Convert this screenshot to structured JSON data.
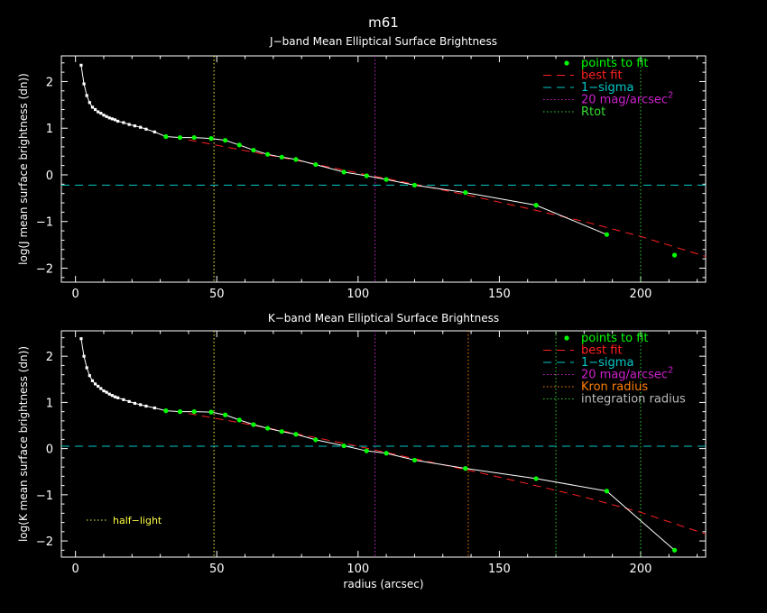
{
  "figure_title": "m61",
  "colors": {
    "background": "#000000",
    "axes": "#ffffff",
    "data": "#ffffff",
    "points": "#00ff00",
    "best_fit": "#ff2020",
    "sigma": "#00c8c8",
    "mag20": "#cc22cc",
    "rtot": "#33dd33",
    "kron": "#ff7f00",
    "integration": "#33cc33",
    "half_light": "#ffff44"
  },
  "chart_data": [
    {
      "type": "line",
      "title": "J−band Mean Elliptical Surface Brightness",
      "xlabel": "",
      "ylabel": "log(J mean surface brightness (dn))",
      "xlim": [
        -5,
        223
      ],
      "ylim": [
        -2.3,
        2.55
      ],
      "xticks": [
        "0",
        "50",
        "100",
        "150",
        "200"
      ],
      "yticks": [
        "2",
        "1",
        "0",
        "−1",
        "−2"
      ],
      "xtick_values": [
        0,
        50,
        100,
        150,
        200
      ],
      "ytick_values": [
        2,
        1,
        0,
        -1,
        -2
      ],
      "legend": [
        "points to fit",
        "best fit",
        "1−sigma",
        "20 mag/arcsec",
        "Rtot"
      ],
      "legend_mag_superscript": "2",
      "data_curve": {
        "x": [
          2,
          3,
          4,
          5,
          6,
          7,
          8,
          9,
          10,
          11,
          12,
          13,
          14,
          15,
          17,
          19,
          21,
          23,
          25,
          28,
          32,
          37,
          42,
          48,
          53,
          58,
          63,
          68,
          73,
          78,
          85,
          95,
          103,
          110,
          120,
          138,
          163,
          188
        ],
        "y": [
          2.35,
          1.95,
          1.7,
          1.55,
          1.45,
          1.4,
          1.35,
          1.32,
          1.28,
          1.25,
          1.22,
          1.2,
          1.18,
          1.15,
          1.12,
          1.08,
          1.05,
          1.02,
          0.98,
          0.92,
          0.82,
          0.8,
          0.8,
          0.78,
          0.74,
          0.64,
          0.53,
          0.44,
          0.38,
          0.33,
          0.22,
          0.06,
          -0.02,
          -0.1,
          -0.22,
          -0.38,
          -0.65,
          -1.28
        ]
      },
      "fit_points": {
        "x": [
          32,
          37,
          42,
          48,
          53,
          58,
          63,
          68,
          73,
          78,
          85,
          95,
          103,
          110,
          120,
          138,
          163,
          188,
          212
        ],
        "y": [
          0.82,
          0.8,
          0.8,
          0.78,
          0.74,
          0.64,
          0.53,
          0.44,
          0.38,
          0.33,
          0.22,
          0.06,
          -0.02,
          -0.1,
          -0.22,
          -0.38,
          -0.65,
          -1.28,
          -1.72
        ]
      },
      "best_fit": {
        "x": [
          40,
          60,
          80,
          100,
          120,
          140,
          160,
          180,
          200,
          223
        ],
        "y": [
          0.75,
          0.52,
          0.29,
          0.04,
          -0.2,
          -0.45,
          -0.72,
          -1.0,
          -1.32,
          -1.75
        ]
      },
      "sigma_level": -0.22,
      "mag20_x": 106,
      "rtot_x": 200,
      "yellow_x": 49
    },
    {
      "type": "line",
      "title": "K−band Mean Elliptical Surface Brightness",
      "xlabel": "radius (arcsec)",
      "ylabel": "log(K mean surface brightness (dn))",
      "xlim": [
        -5,
        223
      ],
      "ylim": [
        -2.35,
        2.55
      ],
      "xticks": [
        "0",
        "50",
        "100",
        "150",
        "200"
      ],
      "yticks": [
        "2",
        "1",
        "0",
        "−1",
        "−2"
      ],
      "xtick_values": [
        0,
        50,
        100,
        150,
        200
      ],
      "ytick_values": [
        2,
        1,
        0,
        -1,
        -2
      ],
      "legend": [
        "points to fit",
        "best fit",
        "1−sigma",
        "20 mag/arcsec",
        "Kron radius",
        "integration radius"
      ],
      "legend_mag_superscript": "2",
      "annotation": "half−light",
      "data_curve": {
        "x": [
          2,
          3,
          4,
          5,
          6,
          7,
          8,
          9,
          10,
          11,
          12,
          13,
          14,
          15,
          17,
          19,
          21,
          23,
          25,
          28,
          32,
          37,
          42,
          48,
          53,
          58,
          63,
          68,
          73,
          78,
          85,
          95,
          103,
          110,
          120,
          138,
          163,
          188
        ],
        "y": [
          2.38,
          2.0,
          1.75,
          1.58,
          1.47,
          1.4,
          1.35,
          1.3,
          1.25,
          1.22,
          1.18,
          1.15,
          1.12,
          1.1,
          1.06,
          1.02,
          0.98,
          0.95,
          0.92,
          0.88,
          0.82,
          0.8,
          0.8,
          0.79,
          0.73,
          0.62,
          0.52,
          0.44,
          0.37,
          0.31,
          0.19,
          0.06,
          -0.05,
          -0.1,
          -0.25,
          -0.43,
          -0.65,
          -0.92
        ]
      },
      "fit_points": {
        "x": [
          32,
          37,
          42,
          48,
          53,
          58,
          63,
          68,
          73,
          78,
          85,
          95,
          103,
          110,
          120,
          138,
          163,
          188,
          212
        ],
        "y": [
          0.82,
          0.8,
          0.8,
          0.79,
          0.73,
          0.62,
          0.52,
          0.44,
          0.37,
          0.31,
          0.19,
          0.06,
          -0.05,
          -0.1,
          -0.25,
          -0.43,
          -0.65,
          -0.92,
          -2.2
        ]
      },
      "data_tail": {
        "x": [
          188,
          212
        ],
        "y": [
          -0.92,
          -2.2
        ]
      },
      "best_fit": {
        "x": [
          40,
          60,
          80,
          100,
          120,
          140,
          160,
          180,
          200,
          223
        ],
        "y": [
          0.76,
          0.54,
          0.3,
          0.05,
          -0.22,
          -0.48,
          -0.76,
          -1.05,
          -1.38,
          -1.85
        ]
      },
      "sigma_level": 0.05,
      "mag20_x": 106,
      "kron_x": 139,
      "integration_x": 170,
      "rtot_x": 200,
      "yellow_x": 49
    }
  ]
}
